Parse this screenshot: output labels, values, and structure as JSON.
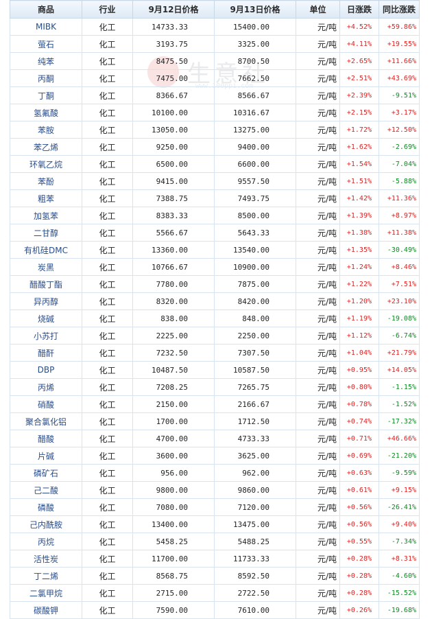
{
  "watermark": {
    "text": "生意社",
    "sub": "www.100ppi.com"
  },
  "table": {
    "headers": [
      "商品",
      "行业",
      "9月12日价格",
      "9月13日价格",
      "单位",
      "日涨跌",
      "同比涨跌"
    ],
    "rows": [
      [
        "MIBK",
        "化工",
        "14733.33",
        "15400.00",
        "元/吨",
        "+4.52%",
        "+59.86%"
      ],
      [
        "萤石",
        "化工",
        "3193.75",
        "3325.00",
        "元/吨",
        "+4.11%",
        "+19.55%"
      ],
      [
        "纯苯",
        "化工",
        "8475.50",
        "8700.50",
        "元/吨",
        "+2.65%",
        "+11.66%"
      ],
      [
        "丙酮",
        "化工",
        "7475.00",
        "7662.50",
        "元/吨",
        "+2.51%",
        "+43.69%"
      ],
      [
        "丁酮",
        "化工",
        "8366.67",
        "8566.67",
        "元/吨",
        "+2.39%",
        "-9.51%"
      ],
      [
        "氢氟酸",
        "化工",
        "10100.00",
        "10316.67",
        "元/吨",
        "+2.15%",
        "+3.17%"
      ],
      [
        "苯胺",
        "化工",
        "13050.00",
        "13275.00",
        "元/吨",
        "+1.72%",
        "+12.50%"
      ],
      [
        "苯乙烯",
        "化工",
        "9250.00",
        "9400.00",
        "元/吨",
        "+1.62%",
        "-2.69%"
      ],
      [
        "环氧乙烷",
        "化工",
        "6500.00",
        "6600.00",
        "元/吨",
        "+1.54%",
        "-7.04%"
      ],
      [
        "苯酚",
        "化工",
        "9415.00",
        "9557.50",
        "元/吨",
        "+1.51%",
        "-5.88%"
      ],
      [
        "粗苯",
        "化工",
        "7388.75",
        "7493.75",
        "元/吨",
        "+1.42%",
        "+11.36%"
      ],
      [
        "加氢苯",
        "化工",
        "8383.33",
        "8500.00",
        "元/吨",
        "+1.39%",
        "+8.97%"
      ],
      [
        "二甘醇",
        "化工",
        "5566.67",
        "5643.33",
        "元/吨",
        "+1.38%",
        "+11.38%"
      ],
      [
        "有机硅DMC",
        "化工",
        "13360.00",
        "13540.00",
        "元/吨",
        "+1.35%",
        "-30.49%"
      ],
      [
        "炭黑",
        "化工",
        "10766.67",
        "10900.00",
        "元/吨",
        "+1.24%",
        "+8.46%"
      ],
      [
        "醋酸丁酯",
        "化工",
        "7780.00",
        "7875.00",
        "元/吨",
        "+1.22%",
        "+7.51%"
      ],
      [
        "异丙醇",
        "化工",
        "8320.00",
        "8420.00",
        "元/吨",
        "+1.20%",
        "+23.10%"
      ],
      [
        "烧碱",
        "化工",
        "838.00",
        "848.00",
        "元/吨",
        "+1.19%",
        "-19.08%"
      ],
      [
        "小苏打",
        "化工",
        "2225.00",
        "2250.00",
        "元/吨",
        "+1.12%",
        "-6.74%"
      ],
      [
        "醋酐",
        "化工",
        "7232.50",
        "7307.50",
        "元/吨",
        "+1.04%",
        "+21.79%"
      ],
      [
        "DBP",
        "化工",
        "10487.50",
        "10587.50",
        "元/吨",
        "+0.95%",
        "+14.05%"
      ],
      [
        "丙烯",
        "化工",
        "7208.25",
        "7265.75",
        "元/吨",
        "+0.80%",
        "-1.15%"
      ],
      [
        "硝酸",
        "化工",
        "2150.00",
        "2166.67",
        "元/吨",
        "+0.78%",
        "-1.52%"
      ],
      [
        "聚合氯化铝",
        "化工",
        "1700.00",
        "1712.50",
        "元/吨",
        "+0.74%",
        "-17.32%"
      ],
      [
        "醋酸",
        "化工",
        "4700.00",
        "4733.33",
        "元/吨",
        "+0.71%",
        "+46.66%"
      ],
      [
        "片碱",
        "化工",
        "3600.00",
        "3625.00",
        "元/吨",
        "+0.69%",
        "-21.20%"
      ],
      [
        "磷矿石",
        "化工",
        "956.00",
        "962.00",
        "元/吨",
        "+0.63%",
        "-9.59%"
      ],
      [
        "己二酸",
        "化工",
        "9800.00",
        "9860.00",
        "元/吨",
        "+0.61%",
        "+9.15%"
      ],
      [
        "磷酸",
        "化工",
        "7080.00",
        "7120.00",
        "元/吨",
        "+0.56%",
        "-26.41%"
      ],
      [
        "己内酰胺",
        "化工",
        "13400.00",
        "13475.00",
        "元/吨",
        "+0.56%",
        "+9.40%"
      ],
      [
        "丙烷",
        "化工",
        "5458.25",
        "5488.25",
        "元/吨",
        "+0.55%",
        "-7.34%"
      ],
      [
        "活性炭",
        "化工",
        "11700.00",
        "11733.33",
        "元/吨",
        "+0.28%",
        "+8.31%"
      ],
      [
        "丁二烯",
        "化工",
        "8568.75",
        "8592.50",
        "元/吨",
        "+0.28%",
        "-4.60%"
      ],
      [
        "二氯甲烷",
        "化工",
        "2715.00",
        "2722.50",
        "元/吨",
        "+0.28%",
        "-15.52%"
      ],
      [
        "碳酸钾",
        "化工",
        "7590.00",
        "7610.00",
        "元/吨",
        "+0.26%",
        "-19.68%"
      ]
    ]
  },
  "colors": {
    "up": "#e02020",
    "down": "#0c8a20",
    "name_link": "#2a4d8a"
  }
}
